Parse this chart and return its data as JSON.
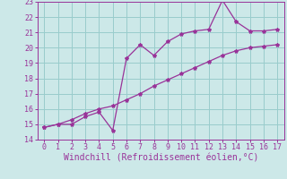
{
  "xlabel": "Windchill (Refroidissement éolien,°C)",
  "bg_color": "#cce8e8",
  "grid_color": "#99cccc",
  "line_color": "#993399",
  "xlim": [
    -0.5,
    17.5
  ],
  "ylim": [
    14,
    23
  ],
  "xticks": [
    0,
    1,
    2,
    3,
    4,
    5,
    6,
    7,
    8,
    9,
    10,
    11,
    12,
    13,
    14,
    15,
    16,
    17
  ],
  "yticks": [
    14,
    15,
    16,
    17,
    18,
    19,
    20,
    21,
    22,
    23
  ],
  "series1_x": [
    0,
    1,
    2,
    3,
    4,
    5,
    6,
    7,
    8,
    9,
    10,
    11,
    12,
    13,
    14,
    15,
    16,
    17
  ],
  "series1_y": [
    14.8,
    15.0,
    15.0,
    15.5,
    15.8,
    14.6,
    19.3,
    20.2,
    19.5,
    20.4,
    20.9,
    21.1,
    21.2,
    23.1,
    21.7,
    21.1,
    21.1,
    21.2
  ],
  "series2_x": [
    0,
    1,
    2,
    3,
    4,
    5,
    6,
    7,
    8,
    9,
    10,
    11,
    12,
    13,
    14,
    15,
    16,
    17
  ],
  "series2_y": [
    14.8,
    15.0,
    15.3,
    15.7,
    16.0,
    16.2,
    16.6,
    17.0,
    17.5,
    17.9,
    18.3,
    18.7,
    19.1,
    19.5,
    19.8,
    20.0,
    20.1,
    20.2
  ],
  "marker": "*",
  "markersize": 3,
  "linewidth": 0.9,
  "tick_fontsize": 6,
  "xlabel_fontsize": 7
}
